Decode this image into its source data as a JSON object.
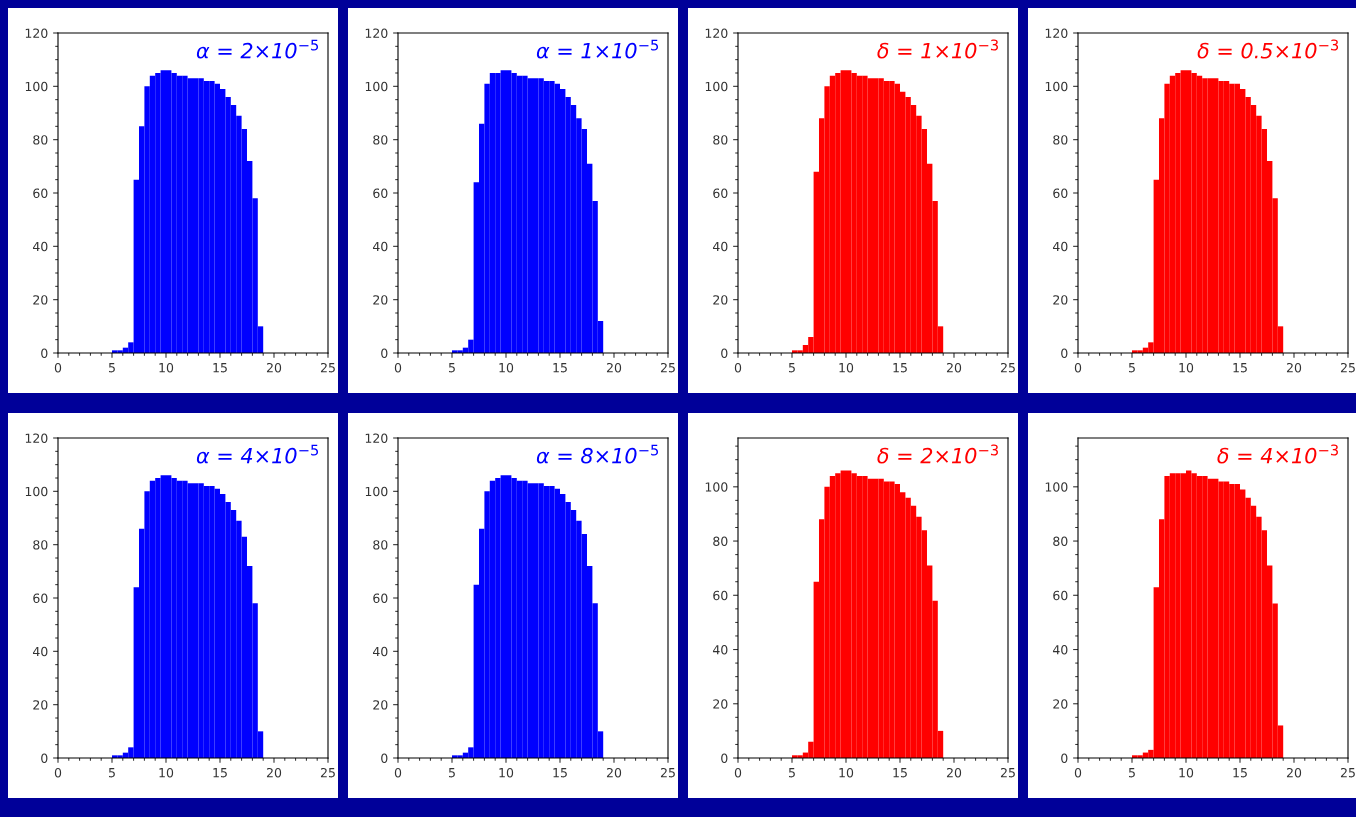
{
  "chart_data": [
    {
      "type": "histogram",
      "annotations": [
        "α = 2×10$^{−5}$"
      ],
      "color": "#0000ff",
      "bins": [
        5,
        5.5,
        6,
        6.5,
        7,
        7.5,
        8,
        8.5,
        9,
        9.5,
        10,
        10.5,
        11,
        11.5,
        12,
        12.5,
        13,
        13.5,
        14,
        14.5,
        15,
        15.5,
        16,
        16.5,
        17,
        17.5,
        18,
        18.5,
        19
      ],
      "values": [
        1,
        1,
        2,
        4,
        65,
        85,
        100,
        104,
        105,
        106,
        106,
        105,
        104,
        104,
        103,
        103,
        103,
        102,
        102,
        101,
        99,
        96,
        93,
        89,
        84,
        72,
        58,
        10
      ],
      "xlim": [
        0,
        25
      ],
      "xticks": [
        0,
        5,
        10,
        15,
        20,
        25
      ],
      "ylim": [
        0,
        120
      ],
      "yticks": [
        0,
        20,
        40,
        60,
        80,
        100,
        120
      ]
    },
    {
      "type": "histogram",
      "annotations": [
        "α = 1×10$^{−5}$"
      ],
      "color": "#0000ff",
      "bins": [
        5,
        5.5,
        6,
        6.5,
        7,
        7.5,
        8,
        8.5,
        9,
        9.5,
        10,
        10.5,
        11,
        11.5,
        12,
        12.5,
        13,
        13.5,
        14,
        14.5,
        15,
        15.5,
        16,
        16.5,
        17,
        17.5,
        18,
        18.5,
        19
      ],
      "values": [
        1,
        1,
        2,
        5,
        64,
        86,
        101,
        105,
        105,
        106,
        106,
        105,
        104,
        104,
        103,
        103,
        103,
        102,
        102,
        101,
        99,
        96,
        93,
        88,
        84,
        71,
        57,
        12
      ],
      "xlim": [
        0,
        25
      ],
      "xticks": [
        0,
        5,
        10,
        15,
        20,
        25
      ],
      "ylim": [
        0,
        120
      ],
      "yticks": [
        0,
        20,
        40,
        60,
        80,
        100,
        120
      ]
    },
    {
      "type": "histogram",
      "annotations": [
        "δ = 1×10$^{−3}$"
      ],
      "color": "#ff0000",
      "bins": [
        5,
        5.5,
        6,
        6.5,
        7,
        7.5,
        8,
        8.5,
        9,
        9.5,
        10,
        10.5,
        11,
        11.5,
        12,
        12.5,
        13,
        13.5,
        14,
        14.5,
        15,
        15.5,
        16,
        16.5,
        17,
        17.5,
        18,
        18.5,
        19
      ],
      "values": [
        1,
        1,
        3,
        6,
        68,
        88,
        100,
        104,
        105,
        106,
        106,
        105,
        104,
        104,
        103,
        103,
        103,
        102,
        102,
        101,
        98,
        96,
        93,
        89,
        84,
        71,
        57,
        10
      ],
      "xlim": [
        0,
        25
      ],
      "xticks": [
        0,
        5,
        10,
        15,
        20,
        25
      ],
      "ylim": [
        0,
        120
      ],
      "yticks": [
        0,
        20,
        40,
        60,
        80,
        100,
        120
      ]
    },
    {
      "type": "histogram",
      "annotations": [
        "δ = 0.5×10$^{−3}$"
      ],
      "color": "#ff0000",
      "bins": [
        5,
        5.5,
        6,
        6.5,
        7,
        7.5,
        8,
        8.5,
        9,
        9.5,
        10,
        10.5,
        11,
        11.5,
        12,
        12.5,
        13,
        13.5,
        14,
        14.5,
        15,
        15.5,
        16,
        16.5,
        17,
        17.5,
        18,
        18.5,
        19
      ],
      "values": [
        1,
        1,
        2,
        4,
        65,
        88,
        101,
        104,
        105,
        106,
        106,
        105,
        104,
        103,
        103,
        103,
        102,
        102,
        101,
        101,
        99,
        96,
        93,
        89,
        84,
        72,
        58,
        10
      ],
      "xlim": [
        0,
        25
      ],
      "xticks": [
        0,
        5,
        10,
        15,
        20,
        25
      ],
      "ylim": [
        0,
        120
      ],
      "yticks": [
        0,
        20,
        40,
        60,
        80,
        100,
        120
      ]
    },
    {
      "type": "histogram",
      "annotations": [
        "α = 4×10$^{−5}$"
      ],
      "color": "#0000ff",
      "bins": [
        5,
        5.5,
        6,
        6.5,
        7,
        7.5,
        8,
        8.5,
        9,
        9.5,
        10,
        10.5,
        11,
        11.5,
        12,
        12.5,
        13,
        13.5,
        14,
        14.5,
        15,
        15.5,
        16,
        16.5,
        17,
        17.5,
        18,
        18.5,
        19
      ],
      "values": [
        1,
        1,
        2,
        4,
        64,
        86,
        100,
        104,
        105,
        106,
        106,
        105,
        104,
        104,
        103,
        103,
        103,
        102,
        102,
        101,
        99,
        96,
        93,
        89,
        83,
        72,
        58,
        10
      ],
      "xlim": [
        0,
        25
      ],
      "xticks": [
        0,
        5,
        10,
        15,
        20,
        25
      ],
      "ylim": [
        0,
        120
      ],
      "yticks": [
        0,
        20,
        40,
        60,
        80,
        100,
        120
      ]
    },
    {
      "type": "histogram",
      "annotations": [
        "α = 8×10$^{−5}$"
      ],
      "color": "#0000ff",
      "bins": [
        5,
        5.5,
        6,
        6.5,
        7,
        7.5,
        8,
        8.5,
        9,
        9.5,
        10,
        10.5,
        11,
        11.5,
        12,
        12.5,
        13,
        13.5,
        14,
        14.5,
        15,
        15.5,
        16,
        16.5,
        17,
        17.5,
        18,
        18.5,
        19
      ],
      "values": [
        1,
        1,
        2,
        4,
        65,
        86,
        100,
        104,
        105,
        106,
        106,
        105,
        104,
        104,
        103,
        103,
        103,
        102,
        102,
        101,
        99,
        96,
        93,
        89,
        84,
        72,
        58,
        10
      ],
      "xlim": [
        0,
        25
      ],
      "xticks": [
        0,
        5,
        10,
        15,
        20,
        25
      ],
      "ylim": [
        0,
        120
      ],
      "yticks": [
        0,
        20,
        40,
        60,
        80,
        100,
        120
      ]
    },
    {
      "type": "histogram",
      "annotations": [
        "δ = 2×10$^{−3}$"
      ],
      "color": "#ff0000",
      "bins": [
        5,
        5.5,
        6,
        6.5,
        7,
        7.5,
        8,
        8.5,
        9,
        9.5,
        10,
        10.5,
        11,
        11.5,
        12,
        12.5,
        13,
        13.5,
        14,
        14.5,
        15,
        15.5,
        16,
        16.5,
        17,
        17.5,
        18,
        18.5,
        19
      ],
      "values": [
        1,
        1,
        2,
        6,
        65,
        88,
        100,
        104,
        105,
        106,
        106,
        105,
        104,
        104,
        103,
        103,
        103,
        102,
        102,
        101,
        98,
        96,
        93,
        89,
        84,
        71,
        58,
        10
      ],
      "xlim": [
        0,
        25
      ],
      "xticks": [
        0,
        5,
        10,
        15,
        20,
        25
      ],
      "ylim": [
        0,
        118
      ],
      "yticks": [
        0,
        20,
        40,
        60,
        80,
        100
      ]
    },
    {
      "type": "histogram",
      "annotations": [
        "δ = 4×10$^{−3}$"
      ],
      "color": "#ff0000",
      "bins": [
        5,
        5.5,
        6,
        6.5,
        7,
        7.5,
        8,
        8.5,
        9,
        9.5,
        10,
        10.5,
        11,
        11.5,
        12,
        12.5,
        13,
        13.5,
        14,
        14.5,
        15,
        15.5,
        16,
        16.5,
        17,
        17.5,
        18,
        18.5,
        19
      ],
      "values": [
        1,
        1,
        2,
        3,
        63,
        88,
        104,
        105,
        105,
        105,
        106,
        105,
        104,
        104,
        103,
        103,
        102,
        102,
        101,
        101,
        99,
        96,
        93,
        89,
        84,
        71,
        57,
        12
      ],
      "xlim": [
        0,
        25
      ],
      "xticks": [
        0,
        5,
        10,
        15,
        20,
        25
      ],
      "ylim": [
        0,
        118
      ],
      "yticks": [
        0,
        20,
        40,
        60,
        80,
        100
      ]
    }
  ]
}
